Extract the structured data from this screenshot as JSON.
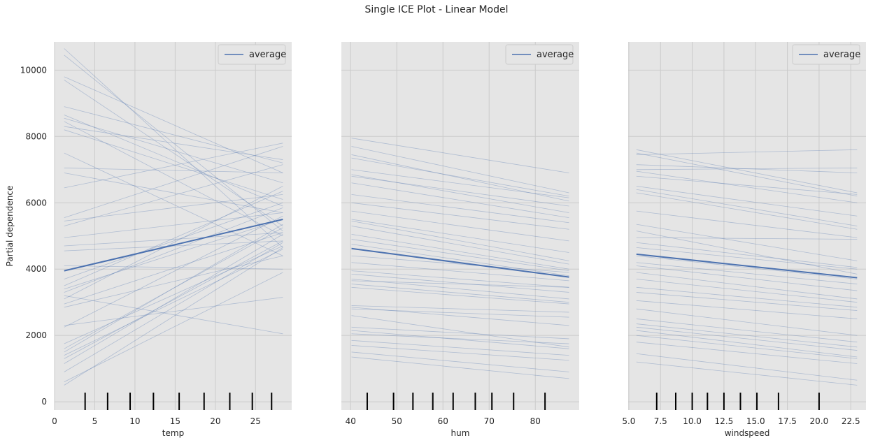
{
  "figure": {
    "title": "Single ICE Plot - Linear Model"
  },
  "style": {
    "panel_bg": "#e5e5e5",
    "grid": "#cbcbcb",
    "ice_line": "#4c72b0",
    "avg_line": "#4c72b0",
    "rug": "#000000",
    "text": "#262626"
  },
  "chart_data": [
    {
      "type": "line",
      "xlabel": "temp",
      "ylabel": "Partial dependence",
      "xlim": [
        0,
        29.5
      ],
      "ylim": [
        -250,
        10850
      ],
      "xticks": [
        0,
        5,
        10,
        15,
        20,
        25
      ],
      "yticks": [
        0,
        2000,
        4000,
        6000,
        8000,
        10000
      ],
      "legend": {
        "label": "average",
        "position": "top-right"
      },
      "x_range": [
        1.2,
        28.4
      ],
      "average": [
        [
          1.2,
          3950
        ],
        [
          28.4,
          5500
        ]
      ],
      "ice": [
        [
          10650,
          4650
        ],
        [
          10450,
          5150
        ],
        [
          9800,
          6900
        ],
        [
          9700,
          5300
        ],
        [
          8900,
          7200
        ],
        [
          8650,
          5900
        ],
        [
          8550,
          6600
        ],
        [
          8450,
          5000
        ],
        [
          8300,
          7300
        ],
        [
          8200,
          6100
        ],
        [
          7500,
          4400
        ],
        [
          7050,
          6900
        ],
        [
          6900,
          5700
        ],
        [
          6450,
          7800
        ],
        [
          5550,
          7700
        ],
        [
          5450,
          6250
        ],
        [
          5300,
          7150
        ],
        [
          4950,
          5700
        ],
        [
          4700,
          5100
        ],
        [
          4550,
          4850
        ],
        [
          4100,
          4000
        ],
        [
          3700,
          6000
        ],
        [
          3500,
          6350
        ],
        [
          3400,
          5500
        ],
        [
          3300,
          5850
        ],
        [
          3200,
          2050
        ],
        [
          3100,
          6500
        ],
        [
          2950,
          5100
        ],
        [
          2850,
          4400
        ],
        [
          2300,
          3150
        ],
        [
          2250,
          5600
        ],
        [
          1750,
          4700
        ],
        [
          1600,
          5250
        ],
        [
          1500,
          5350
        ],
        [
          1400,
          4600
        ],
        [
          1300,
          4850
        ],
        [
          1150,
          5050
        ],
        [
          900,
          4800
        ],
        [
          600,
          3900
        ],
        [
          500,
          4650
        ]
      ],
      "rug": [
        3.8,
        6.6,
        9.4,
        12.3,
        15.5,
        18.6,
        21.8,
        24.6,
        27.0
      ]
    },
    {
      "type": "line",
      "xlabel": "hum",
      "ylabel": "",
      "xlim": [
        38,
        89.5
      ],
      "ylim": [
        -250,
        10850
      ],
      "xticks": [
        40,
        50,
        60,
        70,
        80
      ],
      "yticks": [
        0,
        2000,
        4000,
        6000,
        8000,
        10000
      ],
      "legend": {
        "label": "average",
        "position": "top-right"
      },
      "x_range": [
        40.2,
        87.3
      ],
      "average": [
        [
          40.2,
          4620
        ],
        [
          87.3,
          3760
        ]
      ],
      "ice": [
        [
          7950,
          6900
        ],
        [
          7700,
          6300
        ],
        [
          7450,
          6050
        ],
        [
          7350,
          6200
        ],
        [
          7000,
          6150
        ],
        [
          6850,
          5700
        ],
        [
          6800,
          5900
        ],
        [
          6600,
          5550
        ],
        [
          6250,
          5400
        ],
        [
          6000,
          5200
        ],
        [
          5750,
          4850
        ],
        [
          5500,
          4500
        ],
        [
          5450,
          4250
        ],
        [
          5300,
          4150
        ],
        [
          5050,
          4000
        ],
        [
          4900,
          3950
        ],
        [
          4750,
          3800
        ],
        [
          4400,
          3900
        ],
        [
          4200,
          3650
        ],
        [
          3950,
          3450
        ],
        [
          3850,
          3300
        ],
        [
          3700,
          3100
        ],
        [
          3650,
          3450
        ],
        [
          3550,
          3000
        ],
        [
          3450,
          2950
        ],
        [
          2900,
          2700
        ],
        [
          2850,
          2300
        ],
        [
          2800,
          2550
        ],
        [
          2600,
          1650
        ],
        [
          2250,
          1900
        ],
        [
          2150,
          1600
        ],
        [
          2050,
          1750
        ],
        [
          1850,
          1400
        ],
        [
          1700,
          1250
        ],
        [
          1500,
          900
        ],
        [
          1350,
          700
        ]
      ],
      "rug": [
        43.6,
        49.3,
        53.5,
        57.8,
        62.2,
        67.0,
        70.6,
        75.3,
        82.1
      ]
    },
    {
      "type": "line",
      "xlabel": "windspeed",
      "ylabel": "",
      "xlim": [
        4.95,
        23.7
      ],
      "ylim": [
        -250,
        10850
      ],
      "xticks": [
        5.0,
        7.5,
        10.0,
        12.5,
        15.0,
        17.5,
        20.0,
        22.5
      ],
      "xtick_labels": [
        "5.0",
        "7.5",
        "10.0",
        "12.5",
        "15.0",
        "17.5",
        "20.0",
        "22.5"
      ],
      "yticks": [
        0,
        2000,
        4000,
        6000,
        8000,
        10000
      ],
      "legend": {
        "label": "average",
        "position": "top-right"
      },
      "x_range": [
        5.6,
        23.0
      ],
      "average": [
        [
          5.6,
          4450
        ],
        [
          23.0,
          3740
        ]
      ],
      "ice": [
        [
          7600,
          6300
        ],
        [
          7500,
          6200
        ],
        [
          7450,
          7600
        ],
        [
          7150,
          6900
        ],
        [
          7000,
          7050
        ],
        [
          6950,
          6000
        ],
        [
          6800,
          6250
        ],
        [
          6500,
          5600
        ],
        [
          6400,
          5300
        ],
        [
          6300,
          5200
        ],
        [
          5750,
          4950
        ],
        [
          5350,
          4250
        ],
        [
          5150,
          3850
        ],
        [
          4950,
          4900
        ],
        [
          4800,
          4050
        ],
        [
          4650,
          4000
        ],
        [
          4400,
          3700
        ],
        [
          4200,
          3550
        ],
        [
          4100,
          3350
        ],
        [
          3900,
          3100
        ],
        [
          3700,
          3000
        ],
        [
          3450,
          2850
        ],
        [
          3300,
          2750
        ],
        [
          3050,
          2500
        ],
        [
          2800,
          2000
        ],
        [
          2500,
          1800
        ],
        [
          2350,
          1650
        ],
        [
          2250,
          1550
        ],
        [
          2150,
          1350
        ],
        [
          2000,
          1300
        ],
        [
          1800,
          1150
        ],
        [
          1450,
          650
        ],
        [
          1200,
          500
        ]
      ],
      "rug": [
        7.2,
        8.7,
        10.0,
        11.2,
        12.5,
        13.8,
        15.1,
        16.8,
        20.0
      ]
    }
  ]
}
